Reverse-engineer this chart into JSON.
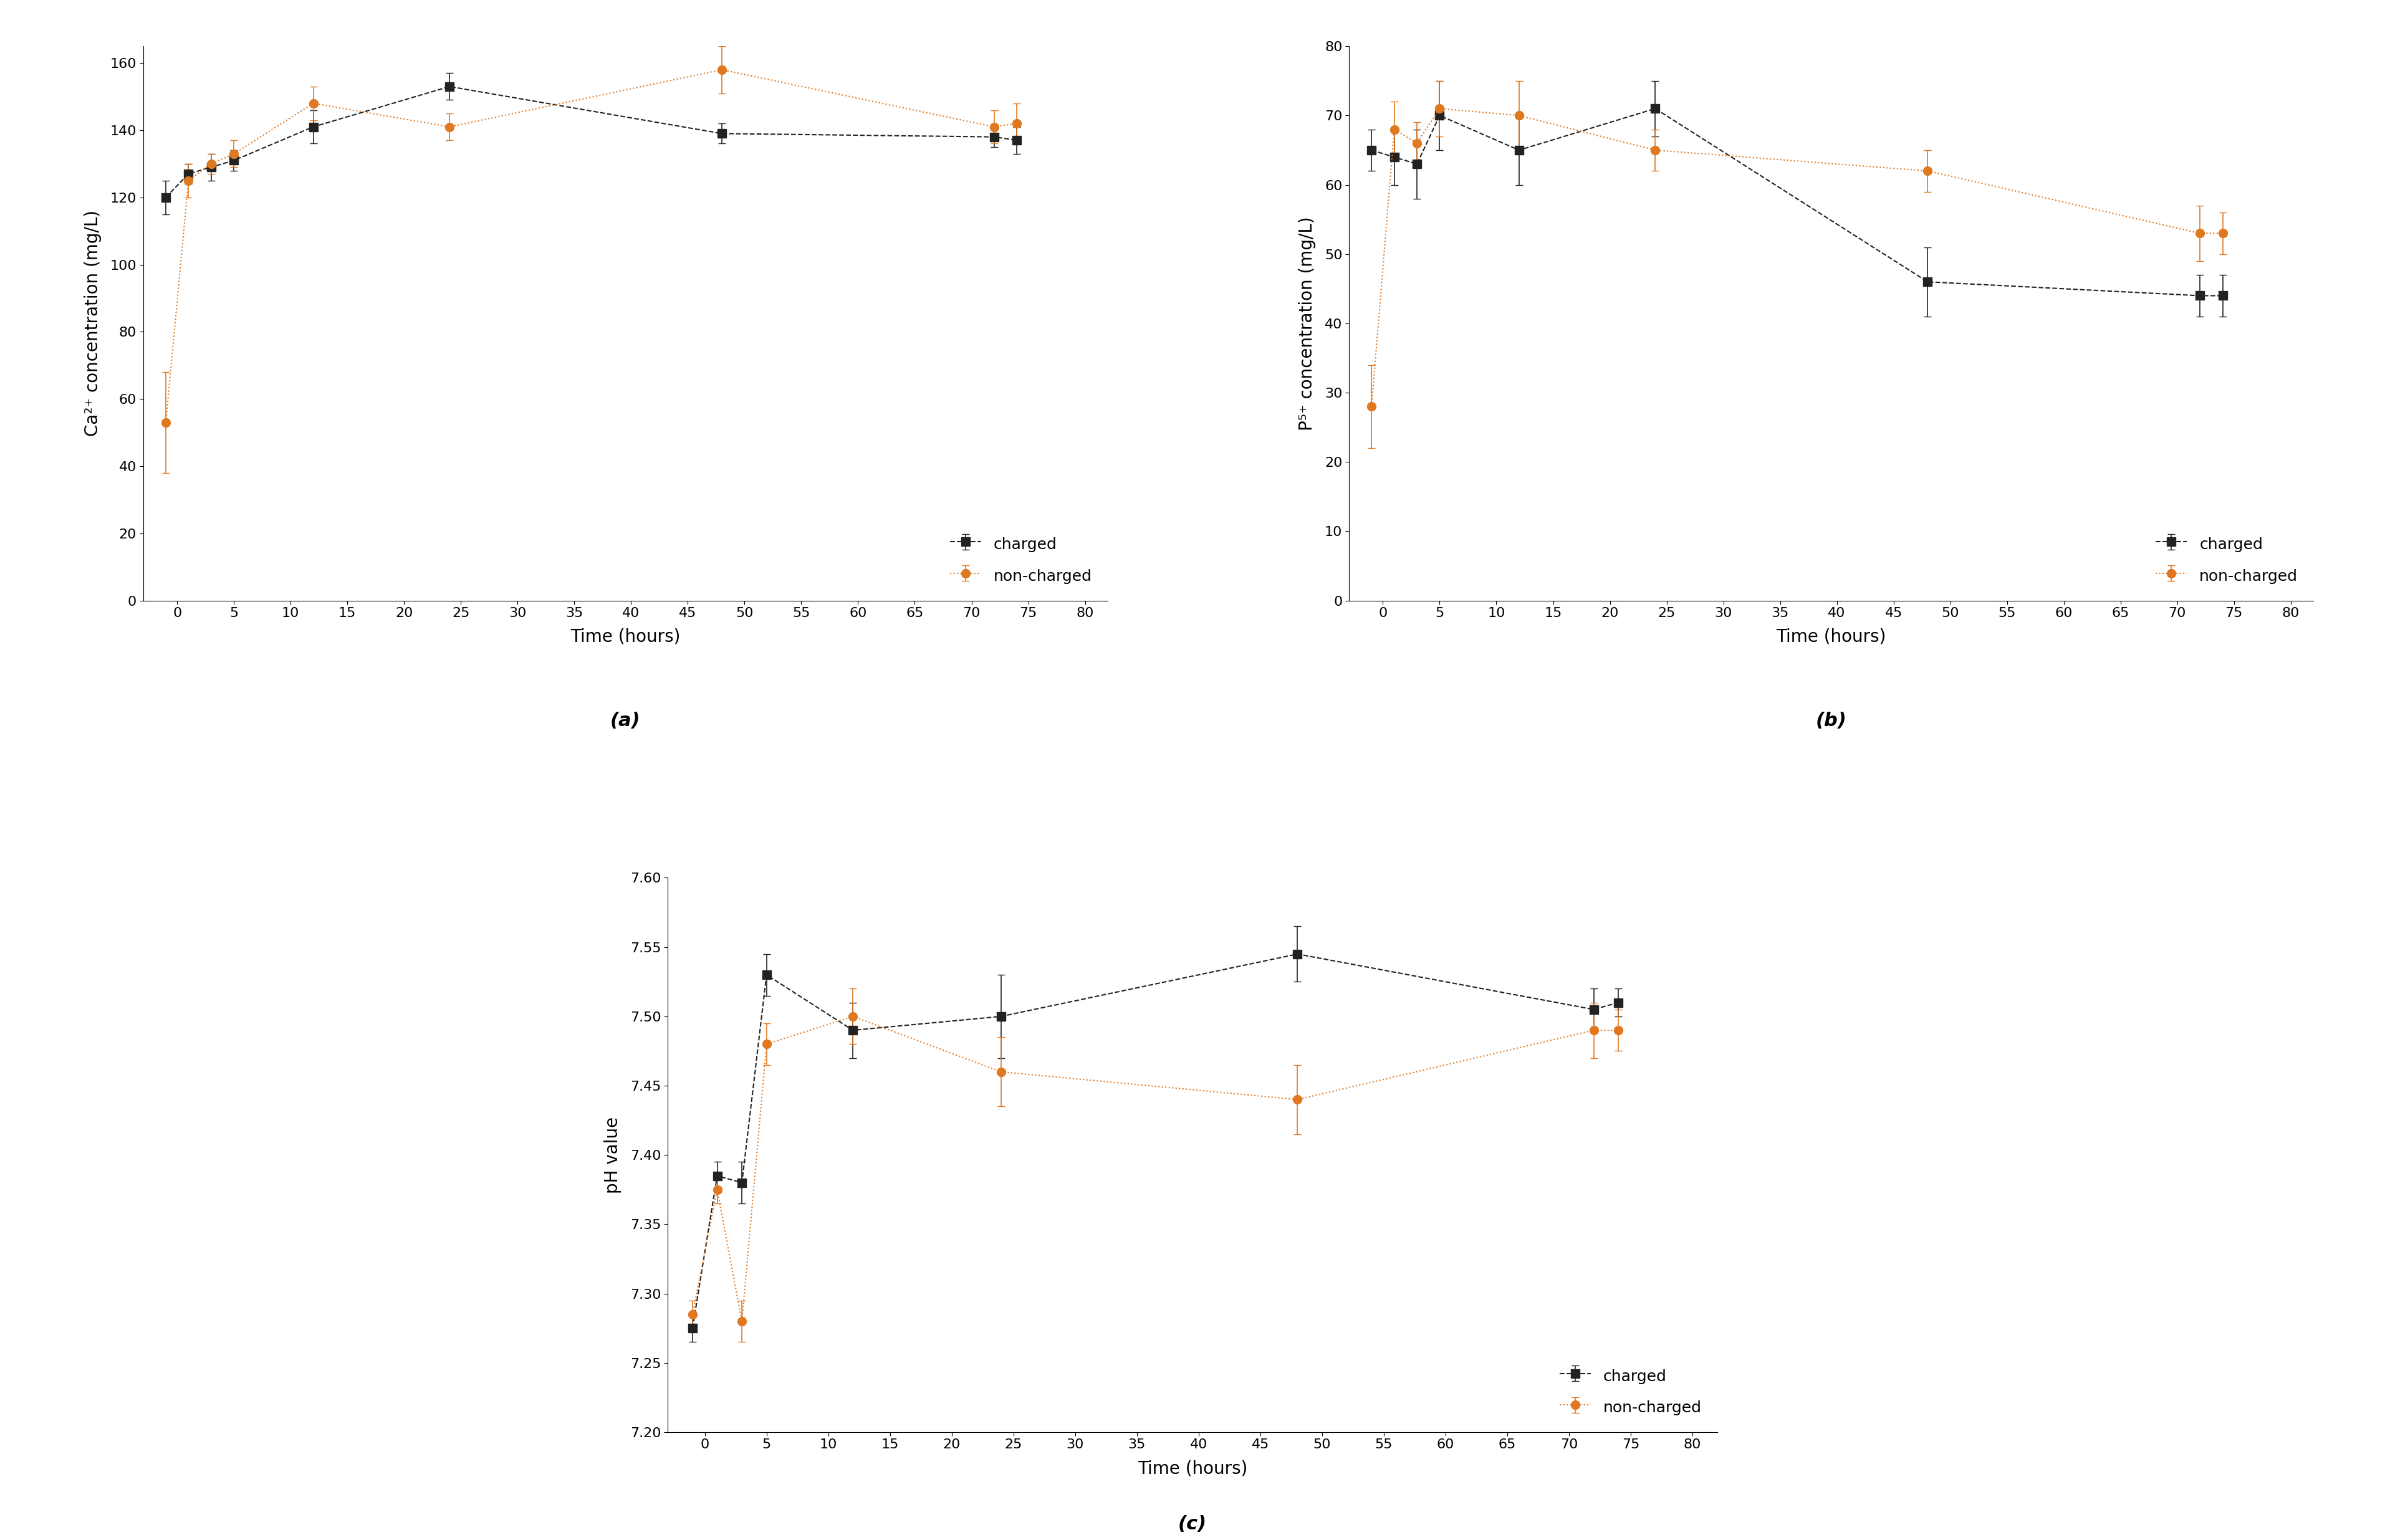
{
  "ca_time": [
    -1,
    1,
    3,
    5,
    12,
    24,
    48,
    72,
    74
  ],
  "ca_charged_y": [
    120,
    127,
    129,
    131,
    141,
    153,
    139,
    138,
    137
  ],
  "ca_charged_err": [
    5,
    3,
    4,
    3,
    5,
    4,
    3,
    3,
    4
  ],
  "ca_noncharged_y": [
    53,
    125,
    130,
    133,
    148,
    141,
    158,
    141,
    142
  ],
  "ca_noncharged_err": [
    15,
    5,
    3,
    4,
    5,
    4,
    7,
    5,
    6
  ],
  "p_time": [
    -1,
    1,
    3,
    5,
    12,
    24,
    48,
    72,
    74
  ],
  "p_charged_y": [
    65,
    64,
    63,
    70,
    65,
    71,
    46,
    44,
    44
  ],
  "p_charged_err": [
    3,
    4,
    5,
    5,
    5,
    4,
    5,
    3,
    3
  ],
  "p_noncharged_y": [
    28,
    68,
    66,
    71,
    70,
    65,
    62,
    53,
    53
  ],
  "p_noncharged_err": [
    6,
    4,
    3,
    4,
    5,
    3,
    3,
    4,
    3
  ],
  "ph_time": [
    -1,
    1,
    3,
    5,
    12,
    24,
    48,
    72,
    74
  ],
  "ph_charged_y": [
    7.275,
    7.385,
    7.38,
    7.53,
    7.49,
    7.5,
    7.545,
    7.505,
    7.51
  ],
  "ph_charged_err": [
    0.01,
    0.01,
    0.015,
    0.015,
    0.02,
    0.03,
    0.02,
    0.015,
    0.01
  ],
  "ph_noncharged_y": [
    7.285,
    7.375,
    7.28,
    7.48,
    7.5,
    7.46,
    7.44,
    7.49,
    7.49
  ],
  "ph_noncharged_err": [
    0.01,
    0.01,
    0.015,
    0.015,
    0.02,
    0.025,
    0.025,
    0.02,
    0.015
  ],
  "charged_color": "#222222",
  "noncharged_color": "#E07820",
  "line_style_charged": "--",
  "line_style_noncharged": ":",
  "marker_charged": "s",
  "marker_noncharged": "o",
  "xlabel": "Time (hours)",
  "ca_ylabel": "Ca²⁺ concentration (mg/L)",
  "p_ylabel": "P⁵⁺ concentration (mg/L)",
  "ph_ylabel": "pH value",
  "xtick_labels": [
    "0",
    "5",
    "10",
    "15",
    "20",
    "25",
    "30",
    "35",
    "40",
    "45",
    "50",
    "55",
    "60",
    "65",
    "70",
    "75",
    "80"
  ],
  "xtick_positions": [
    0,
    5,
    10,
    15,
    20,
    25,
    30,
    35,
    40,
    45,
    50,
    55,
    60,
    65,
    70,
    75,
    80
  ],
  "ca_ylim": [
    0,
    165
  ],
  "ca_yticks": [
    0,
    20,
    40,
    60,
    80,
    100,
    120,
    140,
    160
  ],
  "p_ylim": [
    0,
    80
  ],
  "p_yticks": [
    0,
    10,
    20,
    30,
    40,
    50,
    60,
    70,
    80
  ],
  "ph_ylim": [
    7.2,
    7.6
  ],
  "ph_yticks": [
    7.2,
    7.25,
    7.3,
    7.35,
    7.4,
    7.45,
    7.5,
    7.55,
    7.6
  ],
  "label_a": "(a)",
  "label_b": "(b)",
  "label_c": "(c)"
}
